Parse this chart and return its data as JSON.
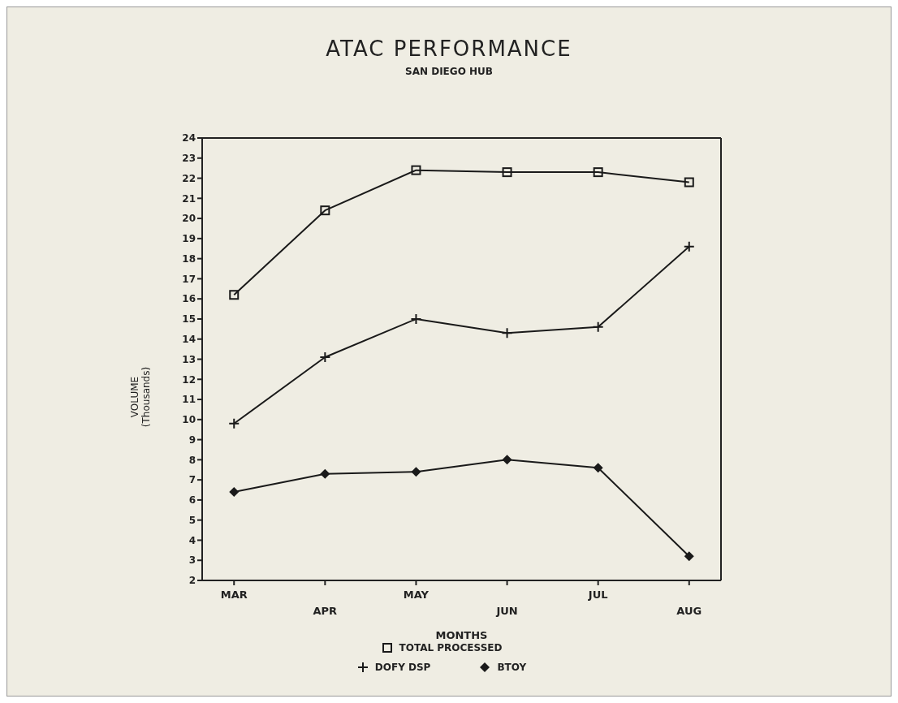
{
  "chart_data": {
    "type": "line",
    "title": "ATAC PERFORMANCE",
    "subtitle": "SAN DIEGO HUB",
    "xlabel": "MONTHS",
    "ylabel": "VOLUME\n(Thousands)",
    "categories": [
      "MAR",
      "APR",
      "MAY",
      "JUN",
      "JUL",
      "AUG"
    ],
    "series": [
      {
        "name": "TOTAL PROCESSED",
        "color": "#1a1a1a",
        "marker": "square",
        "values": [
          16.2,
          20.4,
          22.4,
          22.3,
          22.3,
          21.8
        ]
      },
      {
        "name": "DOFY DSP",
        "color": "#1a1a1a",
        "marker": "cross",
        "values": [
          9.8,
          13.1,
          15.0,
          14.3,
          14.6,
          18.6
        ]
      },
      {
        "name": "BTOY",
        "color": "#1a1a1a",
        "marker": "diamond",
        "values": [
          6.4,
          7.3,
          7.4,
          8.0,
          7.6,
          3.2
        ]
      }
    ],
    "ylim": [
      2,
      24
    ],
    "yticks": [
      2,
      3,
      4,
      5,
      6,
      7,
      8,
      9,
      10,
      11,
      12,
      13,
      14,
      15,
      16,
      17,
      18,
      19,
      20,
      21,
      22,
      23,
      24
    ],
    "grid": false,
    "legend": "bottom",
    "line_style": "solid"
  }
}
